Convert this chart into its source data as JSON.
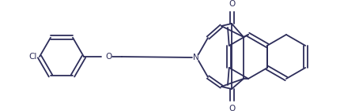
{
  "bg_color": "#ffffff",
  "line_color": "#2d2d5a",
  "line_width": 1.3,
  "figsize": [
    4.3,
    1.41
  ],
  "dpi": 100,
  "cl_label": "Cl",
  "n_label": "N",
  "o_label": "O",
  "font_size": 7.5
}
